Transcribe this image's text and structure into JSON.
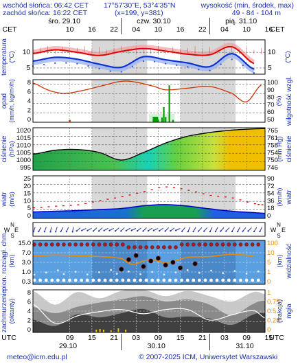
{
  "header": {
    "sunrise": "wschód słońca: 06:42 CET",
    "sunset": "zachód słońca: 16:22 CET",
    "coords": "17°57'30\"E, 53°4'35\"N",
    "grid": "(x=199, y=381)",
    "altitude_label": "wysokość (min, środek, max)",
    "altitude_values": "49 - 84 - 104 m"
  },
  "footer": {
    "email": "meteo@icm.edu.pl",
    "copyright": "© 2007-2025 ICM, Uniwersytet Warszawski"
  },
  "timeline": {
    "cet_label": "CET",
    "utc_label": "UTC",
    "days_top": [
      "śro. 29.10",
      "czw. 30.10",
      "pią. 31.10"
    ],
    "days_bottom": [
      "29.10",
      "30.10",
      "31.10"
    ],
    "hours_top": [
      "10",
      "16",
      "22",
      "04",
      "10",
      "16",
      "22",
      "04",
      "10",
      "16"
    ],
    "hours_bottom": [
      "09",
      "15",
      "21",
      "03",
      "09",
      "15",
      "21",
      "03",
      "09",
      "15"
    ]
  },
  "colors": {
    "temp_max": "#e00000",
    "temp_mean": "#0a32d2",
    "humidity": "#cc3300",
    "precip": "#00a000",
    "wind": "#0000cc",
    "gust": "#dd0000",
    "night": "#d8d8d8",
    "visibility": "#ee8800"
  },
  "chart_data": [
    {
      "type": "line",
      "name": "temperature",
      "ylabel_left": "temperatura",
      "unit_left": "(°C)",
      "yticks": [
        "10",
        "5"
      ],
      "ylim": [
        3,
        14
      ],
      "x_hours": [
        0,
        6,
        12,
        18,
        24,
        30,
        36,
        42,
        48,
        54,
        60
      ],
      "series": [
        {
          "values": [
            9.6,
            10.8,
            10.0,
            9.0,
            10.3,
            11.2,
            10.4,
            9.4,
            9.2,
            11.8,
            6.4
          ]
        },
        {
          "values": [
            7.2,
            8.4,
            7.8,
            6.2,
            5.2,
            8.6,
            7.6,
            6.6,
            5.4,
            9.6,
            4.6
          ]
        },
        {
          "values": [
            6.0,
            7.0,
            6.8,
            5.2,
            4.2,
            7.6,
            6.8,
            5.8,
            4.6,
            8.2,
            3.8
          ]
        }
      ]
    },
    {
      "type": "bar",
      "name": "precipitation-humidity",
      "ylabel_left": "opad",
      "unit_left": "(mm/h, kg/m²/h)",
      "ylabel_right": "wilgotność wzgl.",
      "unit_right": "(%)",
      "yticks_left": [
        "8",
        "6",
        "4",
        "2",
        "0"
      ],
      "yticks_right": [
        "100",
        "90",
        "80",
        "70",
        "60",
        "50"
      ],
      "ylim_left": [
        0,
        9
      ],
      "ylim_right": [
        50,
        100
      ],
      "precip_hours": [
        34,
        35,
        35.5,
        36,
        37,
        38
      ],
      "precip_values": [
        0.6,
        1.0,
        3.2,
        1.1,
        7.8,
        0.5
      ],
      "humidity_hours": [
        0,
        4,
        8,
        12,
        18,
        24,
        28,
        33,
        36,
        42,
        48,
        54,
        58,
        62
      ],
      "humidity_values": [
        96,
        88,
        84,
        86,
        92,
        98,
        97,
        92,
        88,
        90,
        92,
        84,
        74,
        94
      ]
    },
    {
      "type": "area",
      "name": "pressure",
      "ylabel_left": "ciśnienie",
      "unit_left": "(hPa)",
      "unit_right": "(mm Hg)",
      "ylabel_right": "ciśnienie",
      "yticks_left": [
        "1020",
        "1015",
        "1010",
        "1005",
        "1000",
        "995"
      ],
      "yticks_right": [
        "765",
        "761",
        "758",
        "754",
        "750",
        "746"
      ],
      "ylim": [
        995,
        1020
      ],
      "x_hours": [
        0,
        6,
        12,
        18,
        24,
        30,
        36,
        42,
        48,
        54,
        60,
        63
      ],
      "values": [
        1004.5,
        1006.8,
        1007.2,
        1005.5,
        1001.0,
        1005.5,
        1011.0,
        1015.0,
        1017.2,
        1018.6,
        1019.3,
        1019.5
      ]
    },
    {
      "type": "line",
      "name": "wind",
      "ylabel_left": "wiatr",
      "unit_left": "(m/s)",
      "ylabel_right": "wiatr",
      "unit_right": "(km/h)",
      "yticks_left": [
        "25",
        "20",
        "15",
        "10",
        "5",
        "0"
      ],
      "yticks_right": [
        "90",
        "72",
        "54",
        "36",
        "18",
        "0"
      ],
      "ylim": [
        0,
        25
      ],
      "x_hours": [
        0,
        6,
        12,
        18,
        24,
        30,
        36,
        42,
        48,
        54,
        60,
        63
      ],
      "series": [
        {
          "values": [
            6.2,
            7.2,
            8.0,
            10.5,
            12.8,
            15.8,
            18.5,
            16.5,
            13.5,
            12.0,
            8.6,
            8.0
          ]
        },
        {
          "values": [
            3.8,
            4.2,
            4.6,
            5.2,
            5.8,
            7.4,
            8.1,
            7.2,
            5.6,
            4.2,
            3.4,
            3.0
          ]
        }
      ]
    },
    {
      "type": "scatter",
      "name": "clouds-visibility",
      "ylabel_left": "pion. rozciągł. chm.",
      "unit_left": "(km)",
      "ylabel_right": "widzialność",
      "unit_right": "(km)",
      "yticks_left": [
        "15.0",
        "7.0",
        "3.0",
        "1.0",
        "0.3"
      ],
      "yticks_right": [
        "100",
        "10",
        "5",
        "1",
        "0"
      ],
      "x_hours": [
        0,
        6,
        12,
        18,
        24,
        27,
        30,
        33,
        36,
        42,
        48,
        54,
        60
      ],
      "visibility_values": [
        19,
        22,
        20,
        18,
        14,
        6,
        10,
        11,
        8,
        16,
        18,
        24,
        20
      ]
    },
    {
      "type": "area",
      "name": "cloud-cover-fog",
      "ylabel_left": "zachmurzenie",
      "unit_left": "(oktanty)",
      "ylabel_right": "mgła",
      "unit_right": "(frakcja)",
      "yticks_left": [
        "8",
        "6",
        "4",
        "2",
        "0"
      ],
      "yticks_right": [
        "1",
        "0.75",
        "0.5",
        "0.25",
        "0"
      ],
      "x_hours": [
        0,
        6,
        12,
        18,
        24,
        30,
        36,
        42,
        48,
        54,
        60,
        63
      ],
      "total": [
        7.8,
        5.2,
        7.6,
        6.4,
        7.8,
        8.0,
        6.8,
        7.8,
        6.8,
        5.8,
        7.6,
        7.2
      ],
      "middle": [
        4.8,
        3.6,
        4.8,
        5.6,
        6.2,
        6.8,
        5.8,
        6.2,
        5.2,
        3.2,
        5.4,
        6.0
      ],
      "low": [
        2.4,
        1.2,
        3.4,
        2.8,
        3.6,
        4.4,
        2.8,
        3.0,
        2.6,
        1.4,
        3.4,
        3.6
      ]
    }
  ]
}
